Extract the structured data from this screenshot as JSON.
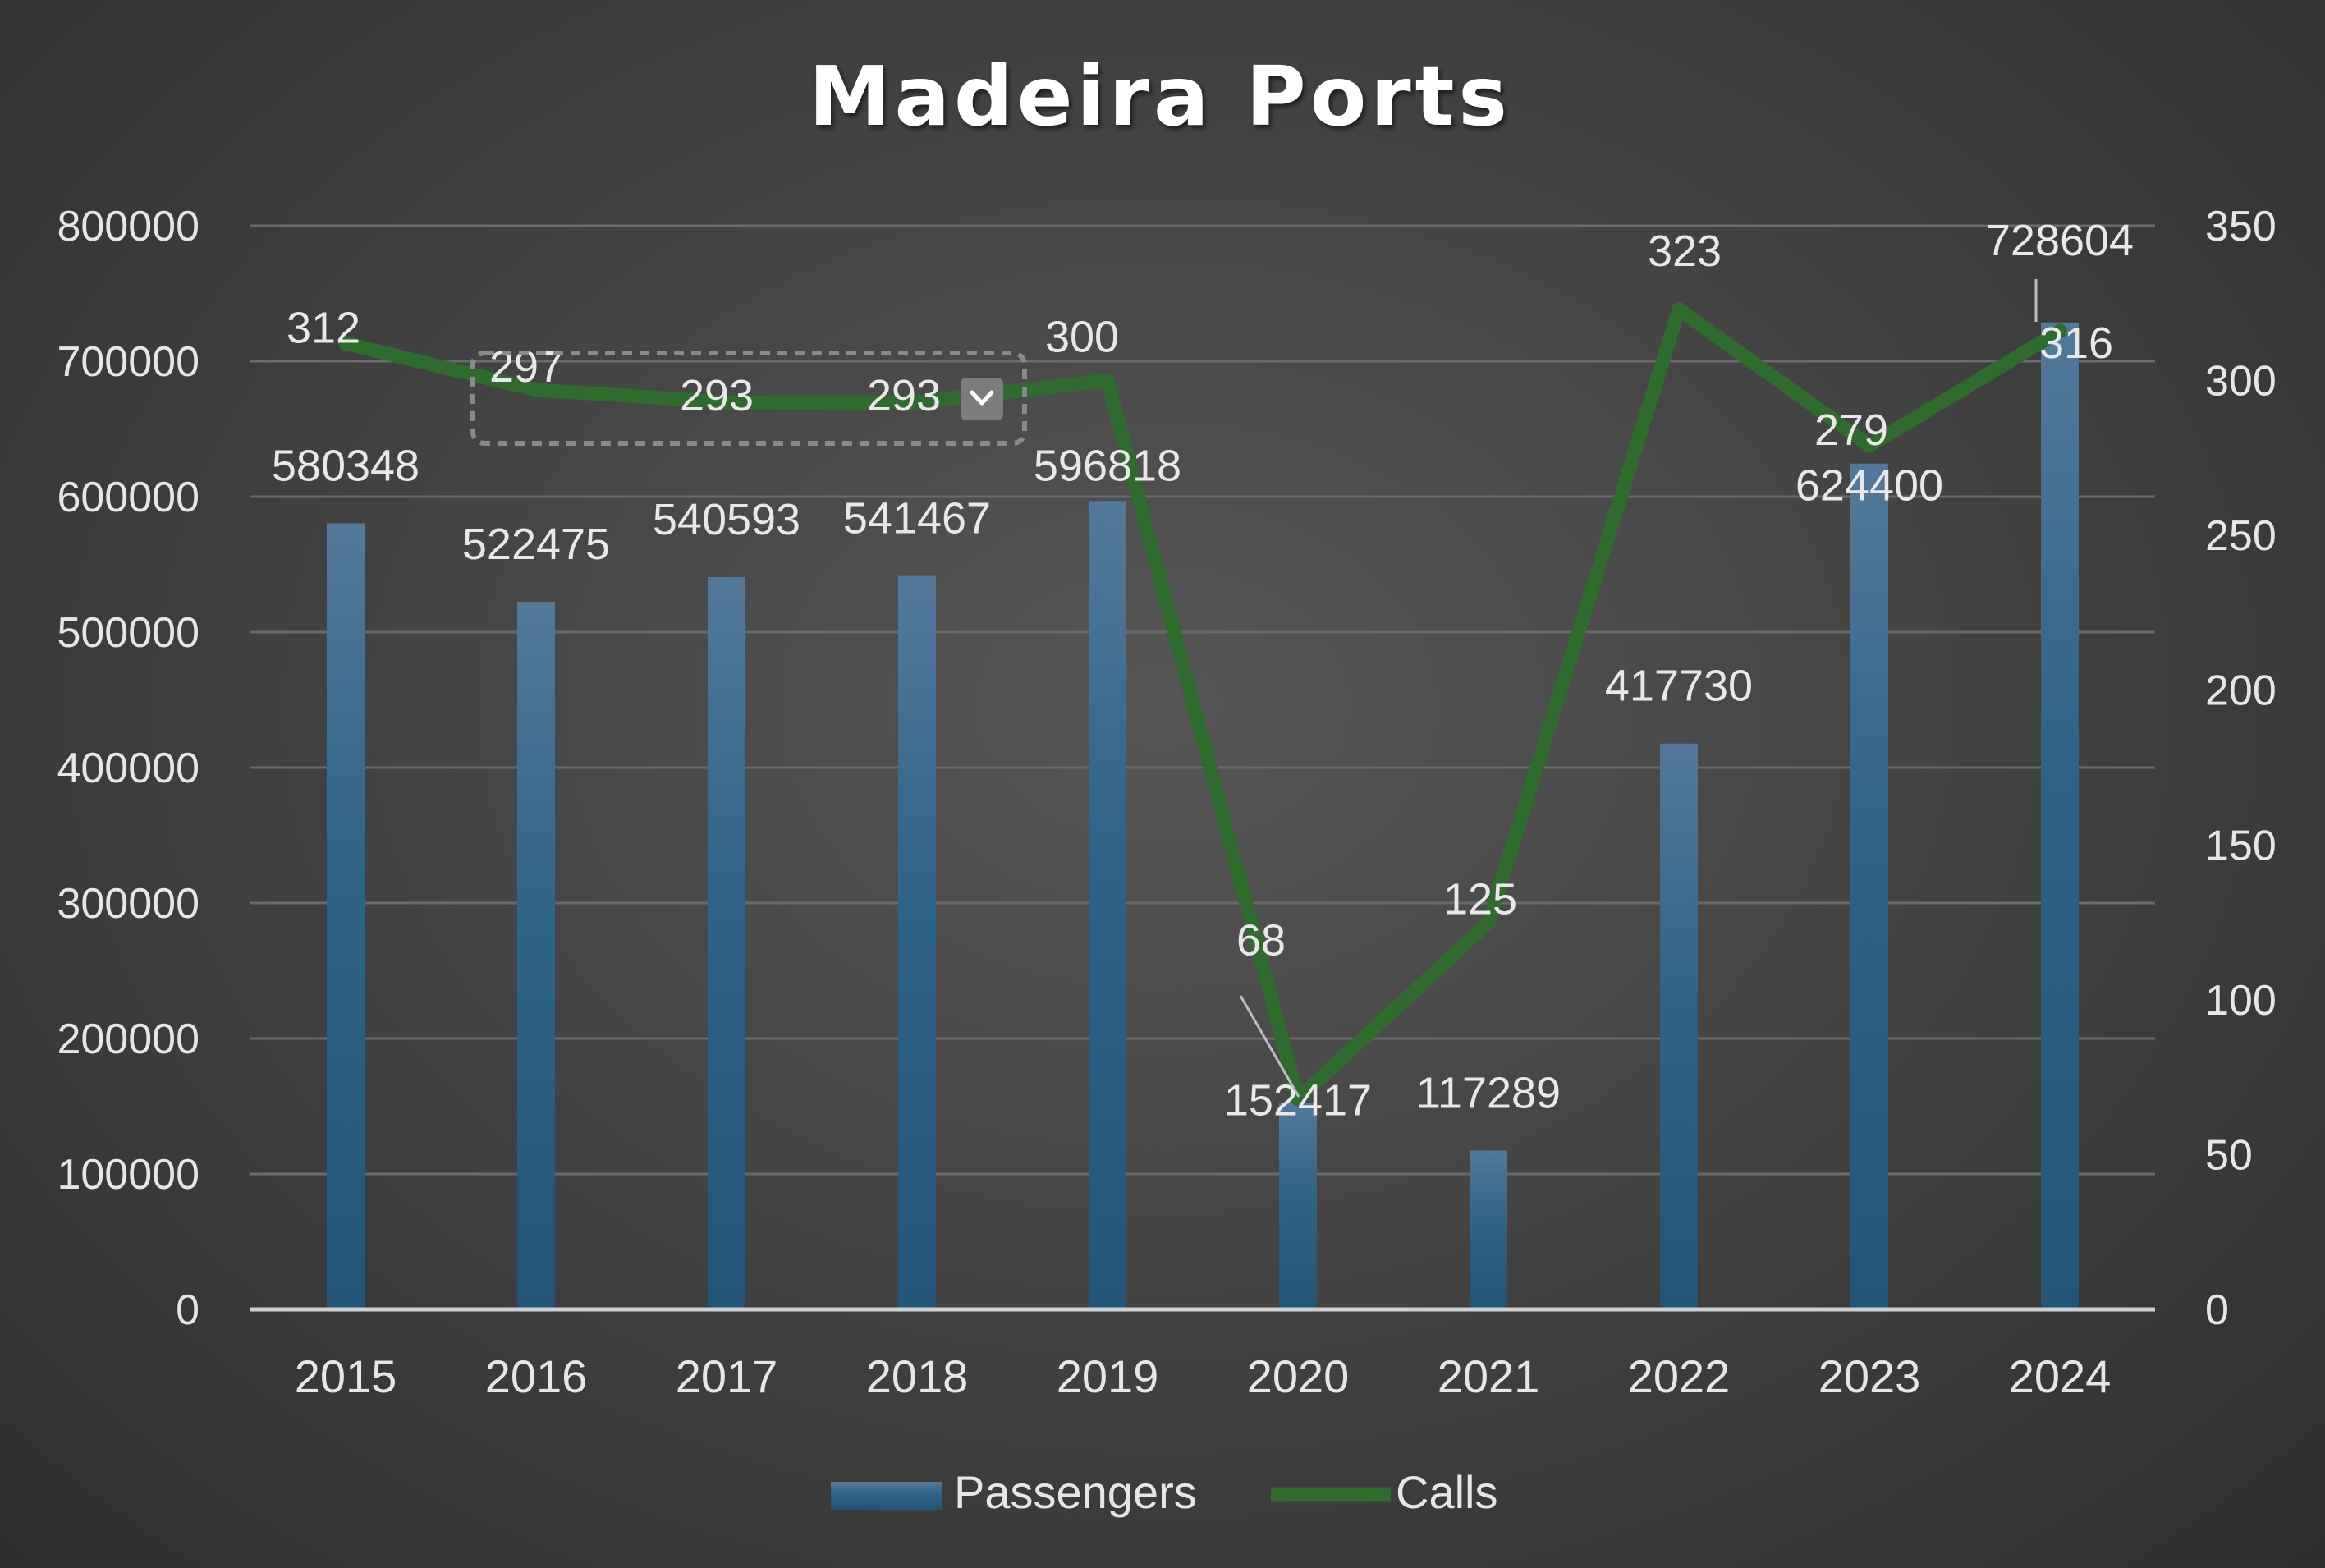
{
  "chart_data": {
    "type": "bar+line",
    "title": "Madeira Ports",
    "categories": [
      "2015",
      "2016",
      "2017",
      "2018",
      "2019",
      "2020",
      "2021",
      "2022",
      "2023",
      "2024"
    ],
    "series": [
      {
        "name": "Passengers",
        "type": "bar",
        "axis": "left",
        "values": [
          580348,
          522475,
          540593,
          541467,
          596818,
          152417,
          117289,
          417730,
          624400,
          728604
        ],
        "color": "#2e6187"
      },
      {
        "name": "Calls",
        "type": "line",
        "axis": "right",
        "values": [
          312,
          297,
          293,
          293,
          300,
          68,
          125,
          323,
          279,
          316
        ],
        "color": "#2f6b2c"
      }
    ],
    "y_left": {
      "min": 0,
      "max": 800000,
      "ticks": [
        "0",
        "100000",
        "200000",
        "300000",
        "400000",
        "500000",
        "600000",
        "700000",
        "800000"
      ]
    },
    "y_right": {
      "min": 0,
      "max": 350,
      "ticks": [
        "0",
        "50",
        "100",
        "150",
        "200",
        "250",
        "300",
        "350"
      ]
    },
    "grid": true,
    "legend": "bottom",
    "selection": {
      "series": "Calls",
      "from": "2016",
      "to": "2018"
    }
  }
}
